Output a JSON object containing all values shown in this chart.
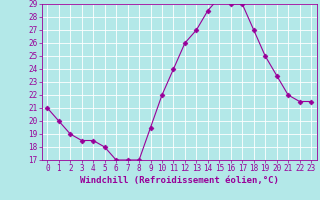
{
  "x": [
    0,
    1,
    2,
    3,
    4,
    5,
    6,
    7,
    8,
    9,
    10,
    11,
    12,
    13,
    14,
    15,
    16,
    17,
    18,
    19,
    20,
    21,
    22,
    23
  ],
  "y": [
    21.0,
    20.0,
    19.0,
    18.5,
    18.5,
    18.0,
    17.0,
    17.0,
    17.0,
    19.5,
    22.0,
    24.0,
    26.0,
    27.0,
    28.5,
    29.5,
    29.0,
    29.0,
    27.0,
    25.0,
    23.5,
    22.0,
    21.5,
    21.5
  ],
  "line_color": "#990099",
  "marker": "D",
  "marker_size": 2.5,
  "bg_color": "#b3e8e8",
  "grid_color": "#ffffff",
  "xlabel": "Windchill (Refroidissement éolien,°C)",
  "xlabel_color": "#990099",
  "tick_color": "#990099",
  "ylim": [
    17,
    29
  ],
  "xlim": [
    -0.5,
    23.5
  ],
  "yticks": [
    17,
    18,
    19,
    20,
    21,
    22,
    23,
    24,
    25,
    26,
    27,
    28,
    29
  ],
  "xticks": [
    0,
    1,
    2,
    3,
    4,
    5,
    6,
    7,
    8,
    9,
    10,
    11,
    12,
    13,
    14,
    15,
    16,
    17,
    18,
    19,
    20,
    21,
    22,
    23
  ],
  "xtick_labels": [
    "0",
    "1",
    "2",
    "3",
    "4",
    "5",
    "6",
    "7",
    "8",
    "9",
    "10",
    "11",
    "12",
    "13",
    "14",
    "15",
    "16",
    "17",
    "18",
    "19",
    "20",
    "21",
    "22",
    "23"
  ],
  "font_size": 5.5,
  "xlabel_fontsize": 6.5
}
